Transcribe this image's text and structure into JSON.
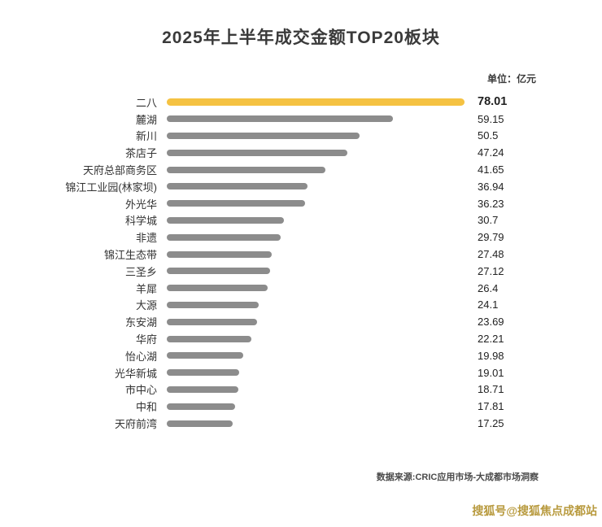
{
  "title": "2025年上半年成交金额TOP20板块",
  "unit_label": "单位：亿元",
  "source": "数据来源:CRIC应用市场-大成都市场洞察",
  "watermark": "搜狐号@搜狐焦点成都站",
  "colors": {
    "highlight": "#f5c242",
    "bar": "#8c8c8c",
    "title": "#3a3a3a",
    "watermark": "#b89a3e"
  },
  "chart_data": {
    "type": "bar",
    "orientation": "horizontal",
    "title": "2025年上半年成交金额TOP20板块",
    "unit": "亿元",
    "categories": [
      "二八",
      "麓湖",
      "新川",
      "茶店子",
      "天府总部商务区",
      "锦江工业园(林家坝)",
      "外光华",
      "科学城",
      "非遗",
      "锦江生态带",
      "三圣乡",
      "羊犀",
      "大源",
      "东安湖",
      "华府",
      "怡心湖",
      "光华新城",
      "市中心",
      "中和",
      "天府前湾"
    ],
    "values": [
      78.01,
      59.15,
      50.5,
      47.24,
      41.65,
      36.94,
      36.23,
      30.7,
      29.79,
      27.48,
      27.12,
      26.4,
      24.1,
      23.69,
      22.21,
      19.98,
      19.01,
      18.71,
      17.81,
      17.25
    ],
    "highlight_index": 0,
    "xlim": [
      0,
      78.01
    ],
    "value_labels": true,
    "grid": false,
    "legend": false
  }
}
